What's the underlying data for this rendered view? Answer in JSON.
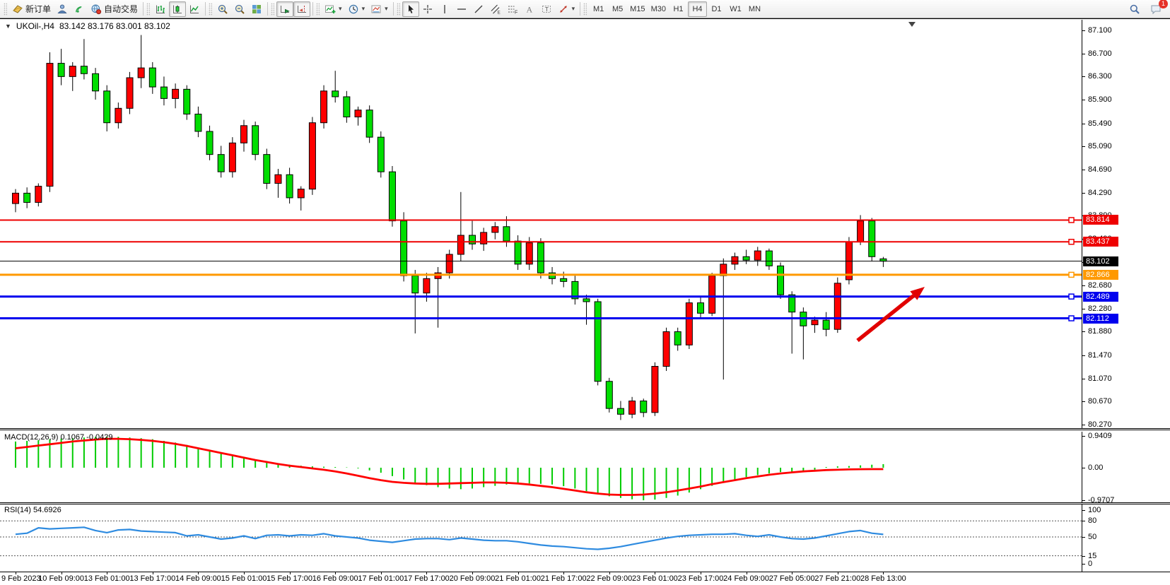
{
  "toolbar": {
    "groups": [
      {
        "name": "orders",
        "buttons": [
          {
            "name": "new-order-button",
            "icon": "new-order-icon",
            "label": "新订单"
          },
          {
            "name": "market-watch-button",
            "icon": "market-watch-icon"
          },
          {
            "name": "signals-button",
            "icon": "signals-icon"
          },
          {
            "name": "autotrading-button",
            "icon": "autotrading-icon",
            "label": "自动交易"
          }
        ]
      },
      {
        "name": "chart-type",
        "buttons": [
          {
            "name": "bar-chart-button",
            "icon": "bar-chart-icon"
          },
          {
            "name": "candlestick-chart-button",
            "icon": "candlestick-icon",
            "pressed": true
          },
          {
            "name": "line-chart-button",
            "icon": "line-chart-icon"
          }
        ]
      },
      {
        "name": "zoom",
        "buttons": [
          {
            "name": "zoom-in-button",
            "icon": "zoom-in-icon"
          },
          {
            "name": "zoom-out-button",
            "icon": "zoom-out-icon"
          },
          {
            "name": "tile-windows-button",
            "icon": "tile-windows-icon"
          }
        ]
      },
      {
        "name": "scroll",
        "buttons": [
          {
            "name": "auto-scroll-button",
            "icon": "auto-scroll-icon",
            "pressed": true
          },
          {
            "name": "chart-shift-button",
            "icon": "chart-shift-icon",
            "pressed": true
          }
        ]
      },
      {
        "name": "dropdown-tools",
        "buttons": [
          {
            "name": "indicators-button",
            "icon": "indicators-icon",
            "caret": true
          },
          {
            "name": "periods-button",
            "icon": "clock-icon",
            "caret": true
          },
          {
            "name": "templates-button",
            "icon": "templates-icon",
            "caret": true
          }
        ]
      },
      {
        "name": "drawing-tools",
        "buttons": [
          {
            "name": "cursor-button",
            "icon": "cursor-icon",
            "pressed": true
          },
          {
            "name": "crosshair-button",
            "icon": "crosshair-icon"
          },
          {
            "name": "vertical-line-button",
            "icon": "vertical-line-icon"
          },
          {
            "name": "horizontal-line-button",
            "icon": "horizontal-line-icon"
          },
          {
            "name": "trendline-button",
            "icon": "trendline-icon"
          },
          {
            "name": "channel-button",
            "icon": "channel-icon"
          },
          {
            "name": "fibonacci-button",
            "icon": "fibonacci-icon"
          },
          {
            "name": "text-button",
            "icon": "text-icon"
          },
          {
            "name": "label-button",
            "icon": "label-icon"
          },
          {
            "name": "arrows-button",
            "icon": "arrows-icon",
            "caret": true
          }
        ]
      },
      {
        "name": "timeframes",
        "buttons": [
          {
            "name": "timeframe-m1-button",
            "label": "M1"
          },
          {
            "name": "timeframe-m5-button",
            "label": "M5"
          },
          {
            "name": "timeframe-m15-button",
            "label": "M15"
          },
          {
            "name": "timeframe-m30-button",
            "label": "M30"
          },
          {
            "name": "timeframe-h1-button",
            "label": "H1"
          },
          {
            "name": "timeframe-h4-button",
            "label": "H4",
            "pressed": true
          },
          {
            "name": "timeframe-d1-button",
            "label": "D1"
          },
          {
            "name": "timeframe-w1-button",
            "label": "W1"
          },
          {
            "name": "timeframe-mn-button",
            "label": "MN"
          }
        ]
      }
    ],
    "right_buttons": [
      {
        "name": "search-button",
        "icon": "search-icon"
      },
      {
        "name": "notifications-button",
        "icon": "chat-icon",
        "badge": "1"
      }
    ],
    "active_timeframe": "H4"
  },
  "chart": {
    "collapse_glyph": "▼",
    "title": "UKOil-,H4",
    "ohlc": "83.142 83.176 83.001 83.102",
    "current_price": "83.102"
  },
  "macd": {
    "label": "MACD(12,26,9) 0.1067 -0.0429"
  },
  "rsi": {
    "label": "RSI(14) 54.6926"
  },
  "chart_data": {
    "type": "candlestick",
    "symbol": "UKOil-",
    "timeframe": "H4",
    "up_color": "#FF0000",
    "down_color": "#00DE00",
    "ylim": [
      80.27,
      87.1
    ],
    "price_ticks": [
      87.1,
      86.7,
      86.3,
      85.9,
      85.49,
      85.09,
      84.69,
      84.29,
      83.89,
      83.49,
      83.09,
      82.68,
      82.28,
      81.88,
      81.47,
      81.07,
      80.67,
      80.27
    ],
    "time_labels": [
      "9 Feb 2023",
      "10 Feb 09:00",
      "13 Feb 01:00",
      "13 Feb 17:00",
      "14 Feb 09:00",
      "15 Feb 01:00",
      "15 Feb 17:00",
      "16 Feb 09:00",
      "17 Feb 01:00",
      "17 Feb 17:00",
      "20 Feb 09:00",
      "21 Feb 01:00",
      "21 Feb 17:00",
      "22 Feb 09:00",
      "23 Feb 01:00",
      "23 Feb 17:00",
      "24 Feb 09:00",
      "27 Feb 05:00",
      "27 Feb 21:00",
      "28 Feb 13:00"
    ],
    "horizontal_lines": [
      {
        "price": 83.814,
        "label": "83.814",
        "color": "#EE0000",
        "width": 2,
        "kind": "resistance"
      },
      {
        "price": 83.437,
        "label": "83.437",
        "color": "#EE0000",
        "width": 2,
        "kind": "resistance"
      },
      {
        "price": 83.102,
        "label": "83.102",
        "color": "#000000",
        "width": 1,
        "kind": "current-price"
      },
      {
        "price": 82.866,
        "label": "82.866",
        "color": "#FF9900",
        "width": 3,
        "kind": "level"
      },
      {
        "price": 82.489,
        "label": "82.489",
        "color": "#0000EE",
        "width": 3,
        "kind": "support"
      },
      {
        "price": 82.112,
        "label": "82.112",
        "color": "#0000EE",
        "width": 3,
        "kind": "support"
      }
    ],
    "candles_ohlc": [
      [
        84.1,
        84.35,
        83.95,
        84.28
      ],
      [
        84.28,
        84.38,
        84.02,
        84.12
      ],
      [
        84.12,
        84.45,
        84.05,
        84.4
      ],
      [
        84.4,
        86.72,
        84.3,
        86.53
      ],
      [
        86.53,
        86.78,
        86.15,
        86.3
      ],
      [
        86.3,
        86.55,
        86.05,
        86.48
      ],
      [
        86.48,
        86.95,
        86.25,
        86.35
      ],
      [
        86.35,
        86.45,
        85.9,
        86.05
      ],
      [
        86.05,
        86.15,
        85.35,
        85.5
      ],
      [
        85.5,
        85.85,
        85.4,
        85.75
      ],
      [
        85.75,
        86.38,
        85.65,
        86.28
      ],
      [
        86.28,
        87.02,
        86.1,
        86.45
      ],
      [
        86.45,
        86.55,
        86.0,
        86.12
      ],
      [
        86.12,
        86.3,
        85.8,
        85.92
      ],
      [
        85.92,
        86.18,
        85.75,
        86.08
      ],
      [
        86.08,
        86.15,
        85.55,
        85.65
      ],
      [
        85.65,
        85.78,
        85.25,
        85.35
      ],
      [
        85.35,
        85.45,
        84.85,
        84.95
      ],
      [
        84.95,
        85.1,
        84.55,
        84.65
      ],
      [
        84.65,
        85.25,
        84.55,
        85.15
      ],
      [
        85.15,
        85.55,
        85.0,
        85.45
      ],
      [
        85.45,
        85.52,
        84.85,
        84.95
      ],
      [
        84.95,
        85.05,
        84.35,
        84.45
      ],
      [
        84.45,
        84.7,
        84.2,
        84.6
      ],
      [
        84.6,
        84.72,
        84.1,
        84.2
      ],
      [
        84.2,
        84.4,
        83.98,
        84.35
      ],
      [
        84.35,
        85.6,
        84.25,
        85.5
      ],
      [
        85.5,
        86.15,
        85.4,
        86.05
      ],
      [
        86.05,
        86.4,
        85.85,
        85.95
      ],
      [
        85.95,
        86.05,
        85.5,
        85.6
      ],
      [
        85.6,
        85.78,
        85.45,
        85.72
      ],
      [
        85.72,
        85.8,
        85.15,
        85.25
      ],
      [
        85.25,
        85.35,
        84.55,
        84.65
      ],
      [
        84.65,
        84.75,
        83.7,
        83.8
      ],
      [
        83.8,
        83.95,
        82.75,
        82.85
      ],
      [
        82.85,
        82.95,
        81.85,
        82.55
      ],
      [
        82.55,
        82.9,
        82.4,
        82.8
      ],
      [
        82.8,
        83.0,
        81.95,
        82.9
      ],
      [
        82.9,
        83.3,
        82.8,
        83.22
      ],
      [
        83.22,
        84.3,
        83.1,
        83.55
      ],
      [
        83.55,
        83.8,
        83.3,
        83.4
      ],
      [
        83.4,
        83.68,
        83.28,
        83.6
      ],
      [
        83.6,
        83.78,
        83.48,
        83.7
      ],
      [
        83.7,
        83.88,
        83.35,
        83.45
      ],
      [
        83.45,
        83.55,
        82.95,
        83.05
      ],
      [
        83.05,
        83.52,
        82.95,
        83.42
      ],
      [
        83.42,
        83.5,
        82.8,
        82.9
      ],
      [
        82.9,
        83.0,
        82.7,
        82.8
      ],
      [
        82.8,
        82.92,
        82.65,
        82.75
      ],
      [
        82.75,
        82.85,
        82.35,
        82.45
      ],
      [
        82.45,
        82.52,
        82.0,
        82.4
      ],
      [
        82.4,
        82.45,
        80.95,
        81.02
      ],
      [
        81.02,
        81.08,
        80.48,
        80.55
      ],
      [
        80.55,
        80.68,
        80.35,
        80.45
      ],
      [
        80.45,
        80.75,
        80.38,
        80.68
      ],
      [
        80.68,
        80.72,
        80.4,
        80.48
      ],
      [
        80.48,
        81.35,
        80.42,
        81.28
      ],
      [
        81.28,
        81.95,
        81.2,
        81.88
      ],
      [
        81.88,
        81.95,
        81.55,
        81.65
      ],
      [
        81.65,
        82.45,
        81.58,
        82.38
      ],
      [
        82.38,
        82.5,
        82.1,
        82.2
      ],
      [
        82.2,
        82.9,
        82.15,
        82.85
      ],
      [
        82.85,
        83.15,
        81.05,
        83.05
      ],
      [
        83.05,
        83.25,
        82.95,
        83.18
      ],
      [
        83.18,
        83.3,
        83.05,
        83.12
      ],
      [
        83.12,
        83.35,
        83.02,
        83.28
      ],
      [
        83.28,
        83.32,
        82.95,
        83.02
      ],
      [
        83.02,
        83.08,
        82.45,
        82.52
      ],
      [
        82.52,
        82.58,
        81.5,
        82.22
      ],
      [
        82.22,
        82.3,
        81.4,
        81.98
      ],
      [
        82.0,
        82.14,
        81.86,
        82.08
      ],
      [
        82.08,
        82.22,
        81.8,
        81.92
      ],
      [
        81.92,
        82.82,
        81.86,
        82.72
      ],
      [
        82.78,
        83.52,
        82.7,
        83.44
      ],
      [
        83.44,
        83.9,
        83.38,
        83.8
      ],
      [
        83.8,
        83.85,
        83.1,
        83.18
      ],
      [
        83.142,
        83.176,
        83.001,
        83.102
      ]
    ],
    "indicators": {
      "macd": {
        "label": "MACD(12,26,9) 0.1067 -0.0429",
        "scale_labels": [
          "0.9409",
          "0.00",
          "-0.9707"
        ],
        "scale_values": [
          0.9409,
          0.0,
          -0.9707
        ],
        "histogram_color": "#00CC00",
        "signal_color": "#FF0000",
        "histogram": [
          0.78,
          0.8,
          0.82,
          0.85,
          0.87,
          0.88,
          0.9,
          0.92,
          0.93,
          0.92,
          0.9,
          0.88,
          0.85,
          0.8,
          0.75,
          0.68,
          0.6,
          0.52,
          0.45,
          0.38,
          0.3,
          0.24,
          0.18,
          0.13,
          0.09,
          0.06,
          0.04,
          0.03,
          0.02,
          0.01,
          -0.02,
          -0.08,
          -0.15,
          -0.25,
          -0.35,
          -0.45,
          -0.52,
          -0.58,
          -0.62,
          -0.64,
          -0.62,
          -0.58,
          -0.54,
          -0.5,
          -0.48,
          -0.47,
          -0.48,
          -0.5,
          -0.55,
          -0.62,
          -0.7,
          -0.78,
          -0.85,
          -0.9,
          -0.94,
          -0.97,
          -0.95,
          -0.9,
          -0.83,
          -0.74,
          -0.64,
          -0.54,
          -0.44,
          -0.35,
          -0.28,
          -0.22,
          -0.17,
          -0.13,
          -0.12,
          -0.1,
          -0.06,
          0.02,
          0.04,
          0.05,
          0.07,
          0.09,
          0.1067
        ],
        "signal": [
          0.58,
          0.62,
          0.66,
          0.7,
          0.74,
          0.78,
          0.81,
          0.84,
          0.86,
          0.86,
          0.85,
          0.83,
          0.8,
          0.76,
          0.71,
          0.65,
          0.58,
          0.51,
          0.44,
          0.37,
          0.3,
          0.23,
          0.17,
          0.11,
          0.06,
          0.02,
          -0.02,
          -0.06,
          -0.11,
          -0.17,
          -0.24,
          -0.31,
          -0.37,
          -0.42,
          -0.45,
          -0.47,
          -0.48,
          -0.48,
          -0.47,
          -0.46,
          -0.45,
          -0.44,
          -0.44,
          -0.45,
          -0.47,
          -0.5,
          -0.54,
          -0.58,
          -0.63,
          -0.68,
          -0.73,
          -0.77,
          -0.8,
          -0.81,
          -0.81,
          -0.8,
          -0.77,
          -0.73,
          -0.68,
          -0.62,
          -0.56,
          -0.49,
          -0.43,
          -0.37,
          -0.31,
          -0.26,
          -0.21,
          -0.17,
          -0.14,
          -0.11,
          -0.09,
          -0.07,
          -0.06,
          -0.05,
          -0.045,
          -0.043,
          -0.0429
        ]
      },
      "rsi": {
        "label": "RSI(14) 54.6926",
        "line_color": "#2E8BE0",
        "levels": [
          80,
          50,
          15
        ],
        "scale_labels": [
          "100",
          "80",
          "50",
          "15",
          "0"
        ],
        "scale_values": [
          100,
          80,
          50,
          15,
          0
        ],
        "values": [
          55,
          57,
          67,
          65,
          66,
          67,
          68,
          62,
          58,
          63,
          64,
          61,
          60,
          59,
          58,
          52,
          54,
          50,
          46,
          48,
          52,
          47,
          53,
          54,
          52,
          54,
          53,
          56,
          52,
          50,
          48,
          44,
          42,
          40,
          43,
          46,
          47,
          47,
          45,
          48,
          46,
          44,
          43,
          43,
          41,
          38,
          35,
          33,
          32,
          30,
          28,
          27,
          29,
          32,
          36,
          40,
          44,
          48,
          51,
          53,
          54,
          55,
          55,
          56,
          53,
          51,
          54,
          50,
          47,
          46,
          48,
          52,
          56,
          60,
          62,
          57,
          54.7
        ]
      }
    },
    "annotation_arrow": {
      "color": "#E10000",
      "direction": "up-right",
      "tail": [
        1213,
        454
      ],
      "tip": [
        1308,
        378
      ]
    }
  }
}
